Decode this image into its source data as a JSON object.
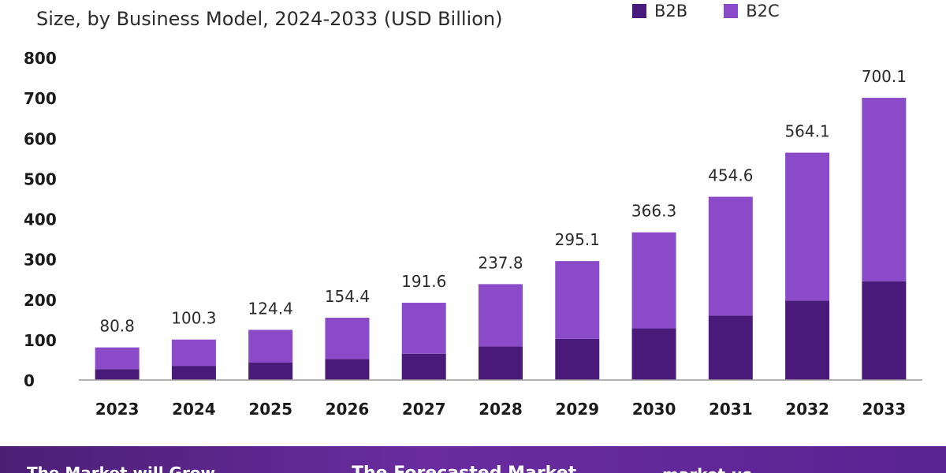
{
  "subtitle": "Size, by Business Model, 2024-2033 (USD Billion)",
  "legend": [
    {
      "label": "B2B",
      "color": "#4a1a7a"
    },
    {
      "label": "B2C",
      "color": "#8b4bc9"
    }
  ],
  "footer": {
    "left_text": "The Market will Grow",
    "mid_text": "The Forecasted Market",
    "right_text": "market.us"
  },
  "chart_data": {
    "type": "bar",
    "stacked": true,
    "categories": [
      "2023",
      "2024",
      "2025",
      "2026",
      "2027",
      "2028",
      "2029",
      "2030",
      "2031",
      "2032",
      "2033"
    ],
    "series": [
      {
        "name": "B2B",
        "values": [
          27,
          35,
          43,
          52,
          65,
          83,
          102,
          128,
          160,
          197,
          245
        ]
      },
      {
        "name": "B2C",
        "values": [
          53.8,
          65.3,
          81.4,
          102.4,
          126.6,
          154.8,
          193.1,
          238.3,
          294.6,
          367.1,
          455.1
        ]
      }
    ],
    "totals": [
      "80.8",
      "100.3",
      "124.4",
      "154.4",
      "191.6",
      "237.8",
      "295.1",
      "366.3",
      "454.6",
      "564.1",
      "700.1"
    ],
    "ylim": [
      0,
      800
    ],
    "yticks": [
      "0",
      "100",
      "200",
      "300",
      "400",
      "500",
      "600",
      "700",
      "800"
    ],
    "grid": false,
    "legend_position": "top-right"
  }
}
